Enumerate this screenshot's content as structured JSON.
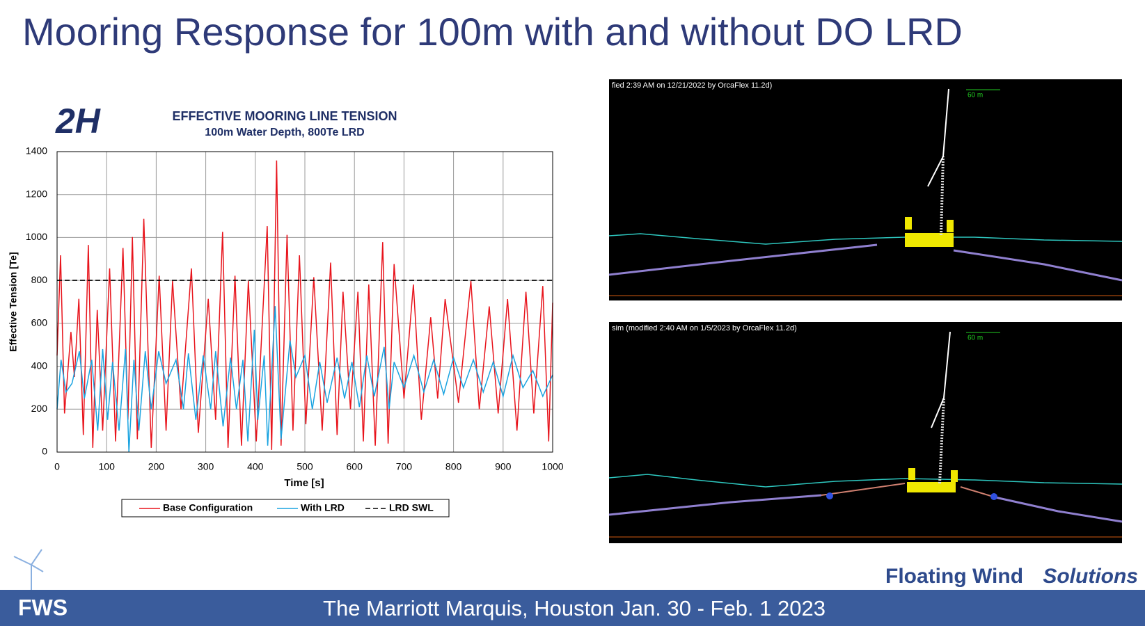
{
  "header": {
    "title": "Mooring Response for 100m with and without DO LRD"
  },
  "logo": "2H",
  "chart_data": {
    "type": "line",
    "title": "EFFECTIVE MOORING LINE TENSION",
    "subtitle": "100m Water Depth, 800Te LRD",
    "x_label": "Time [s]",
    "y_label": "Effective Tension [Te]",
    "xlim": [
      0,
      1000
    ],
    "ylim": [
      0,
      1400
    ],
    "xticks": [
      0,
      100,
      200,
      300,
      400,
      500,
      600,
      700,
      800,
      900,
      1000
    ],
    "yticks": [
      0,
      200,
      400,
      600,
      800,
      1000,
      1200,
      1400
    ],
    "grid": true,
    "series": [
      {
        "name": "Base Configuration",
        "color": "#e8141c",
        "x": [
          0,
          7,
          15,
          28,
          35,
          44,
          53,
          63,
          72,
          81,
          92,
          106,
          118,
          133,
          143,
          152,
          162,
          175,
          190,
          206,
          220,
          233,
          250,
          271,
          285,
          305,
          320,
          334,
          345,
          359,
          372,
          386,
          402,
          424,
          433,
          443,
          452,
          464,
          476,
          489,
          502,
          518,
          535,
          552,
          565,
          577,
          592,
          607,
          618,
          629,
          642,
          657,
          668,
          680,
          700,
          719,
          735,
          754,
          768,
          783,
          810,
          835,
          852,
          872,
          890,
          909,
          928,
          946,
          962,
          980,
          992,
          1000
        ],
        "values": [
          450,
          917,
          180,
          560,
          350,
          714,
          80,
          965,
          20,
          662,
          100,
          856,
          50,
          951,
          150,
          1002,
          60,
          1087,
          20,
          822,
          100,
          798,
          200,
          856,
          90,
          714,
          150,
          1026,
          20,
          822,
          30,
          798,
          50,
          1053,
          10,
          1359,
          30,
          1012,
          100,
          917,
          130,
          815,
          100,
          883,
          80,
          747,
          200,
          747,
          50,
          781,
          30,
          978,
          40,
          876,
          250,
          781,
          150,
          628,
          250,
          713,
          230,
          798,
          200,
          679,
          180,
          713,
          100,
          747,
          180,
          774,
          50,
          696
        ]
      },
      {
        "name": "With LRD",
        "color": "#1aa3e0",
        "x": [
          0,
          8,
          18,
          30,
          45,
          55,
          70,
          82,
          92,
          102,
          112,
          125,
          138,
          145,
          155,
          165,
          178,
          190,
          205,
          220,
          240,
          255,
          265,
          280,
          295,
          310,
          320,
          335,
          350,
          362,
          375,
          385,
          398,
          405,
          418,
          425,
          440,
          452,
          470,
          482,
          500,
          515,
          530,
          545,
          565,
          580,
          595,
          610,
          625,
          640,
          660,
          670,
          680,
          700,
          720,
          740,
          760,
          780,
          800,
          820,
          840,
          860,
          880,
          900,
          920,
          940,
          960,
          980,
          1000
        ],
        "values": [
          200,
          430,
          280,
          320,
          470,
          250,
          430,
          100,
          480,
          150,
          420,
          100,
          480,
          0,
          430,
          100,
          470,
          200,
          470,
          320,
          430,
          200,
          460,
          150,
          450,
          200,
          470,
          120,
          440,
          200,
          430,
          50,
          570,
          150,
          450,
          30,
          680,
          60,
          520,
          350,
          450,
          200,
          420,
          230,
          440,
          250,
          420,
          210,
          450,
          260,
          490,
          200,
          420,
          300,
          450,
          280,
          430,
          270,
          440,
          300,
          430,
          280,
          420,
          260,
          450,
          300,
          380,
          260,
          360
        ]
      },
      {
        "name": "LRD SWL",
        "color": "#000000",
        "dash": true,
        "x": [
          0,
          1000
        ],
        "values": [
          800,
          800
        ]
      }
    ]
  },
  "panels": [
    {
      "caption": "fied 2:39 AM on 12/21/2022 by OrcaFlex 11.2d)",
      "scale_label": "60 m"
    },
    {
      "caption": "sim (modified 2:40 AM on 1/5/2023 by OrcaFlex 11.2d)",
      "scale_label": "60 m"
    }
  ],
  "footer": {
    "brand": "Floating Wind",
    "brand_emphasis": "Solutions",
    "venue": "The Marriott Marquis, Houston  Jan. 30 - Feb. 1 2023",
    "logo": "FWS"
  }
}
